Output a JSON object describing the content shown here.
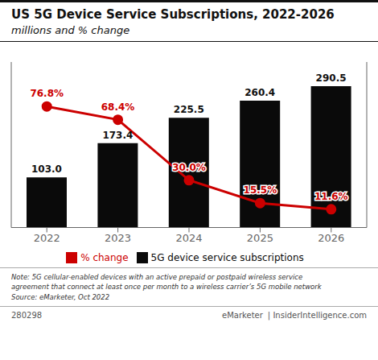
{
  "chart_data": {
    "type": "bar",
    "title": "US 5G Device Service Subscriptions, 2022-2026",
    "subtitle": "millions and % change",
    "categories": [
      "2022",
      "2023",
      "2024",
      "2025",
      "2026"
    ],
    "series": [
      {
        "name": "5G device service subscriptions",
        "type": "bar",
        "color": "#0a0a0a",
        "values": [
          103.0,
          173.4,
          225.5,
          260.4,
          290.5
        ],
        "value_labels": [
          "103.0",
          "173.4",
          "225.5",
          "260.4",
          "290.5"
        ]
      },
      {
        "name": "% change",
        "type": "line",
        "axis": "y2",
        "color": "#cc0000",
        "marker": "circle",
        "values": [
          76.8,
          68.4,
          30.0,
          15.5,
          11.6
        ],
        "value_labels": [
          "76.8%",
          "68.4%",
          "30.0%",
          "15.5%",
          "11.6%"
        ]
      }
    ],
    "ylim": [
      0,
      340
    ],
    "y2lim": [
      0,
      105
    ],
    "tick_labels": "x",
    "data_labels": true,
    "legend": "bottom",
    "grid": false,
    "annotations": [
      "Note: 5G cellular-enabled devices with an active prepaid or postpaid wireless service\nagreement that connect at least once per month to a wireless carrier’s 5G mobile network\nSource: eMarketer, Oct 2022",
      "280298",
      "eMarketer",
      "| InsiderIntelligence.com"
    ]
  }
}
